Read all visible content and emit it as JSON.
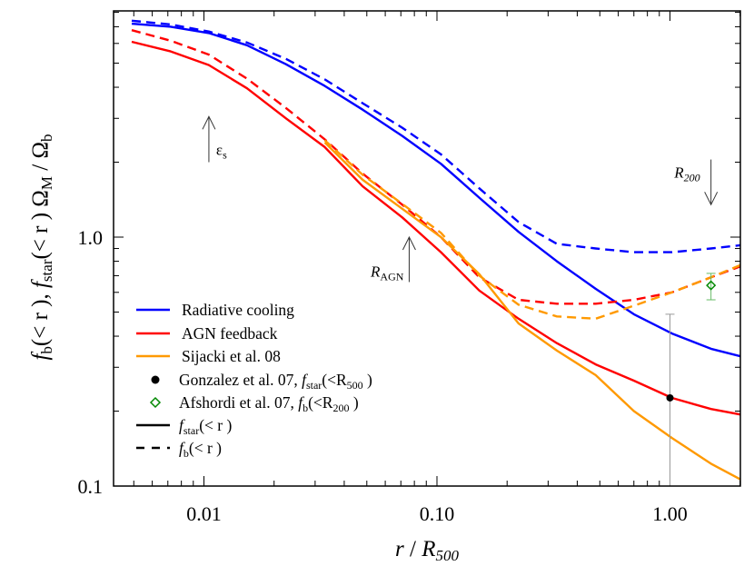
{
  "chart_data": {
    "type": "line",
    "x_scale": "log",
    "y_scale": "log",
    "xlim": [
      0.0041,
      2.0
    ],
    "ylim": [
      0.1,
      8.1
    ],
    "grid": false,
    "legend_placement": "bottom-left",
    "xlabel_parts": [
      {
        "t": "r",
        "s": "i"
      },
      {
        "t": " / ",
        "s": "n"
      },
      {
        "t": "R",
        "s": "i"
      },
      {
        "t": "500",
        "s": "isub"
      }
    ],
    "ylabel_parts": [
      {
        "t": "f",
        "s": "i"
      },
      {
        "t": "b",
        "s": "sub"
      },
      {
        "t": "(< r ), ",
        "s": "n"
      },
      {
        "t": "f",
        "s": "i"
      },
      {
        "t": "star",
        "s": "sub"
      },
      {
        "t": "(< r ) Ω",
        "s": "n"
      },
      {
        "t": "M",
        "s": "sub"
      },
      {
        "t": " / Ω",
        "s": "n"
      },
      {
        "t": "b",
        "s": "sub"
      }
    ],
    "x_ticks": [
      {
        "value": 0.01,
        "label": "0.01"
      },
      {
        "value": 0.1,
        "label": "0.10"
      },
      {
        "value": 1.0,
        "label": "1.00"
      }
    ],
    "y_ticks": [
      {
        "value": 0.1,
        "label": "0.1"
      },
      {
        "value": 1.0,
        "label": "1.0"
      }
    ],
    "x": [
      0.0049,
      0.0072,
      0.0105,
      0.0153,
      0.0225,
      0.033,
      0.048,
      0.071,
      0.104,
      0.152,
      0.224,
      0.327,
      0.48,
      0.7,
      1.02,
      1.5,
      2.06
    ],
    "series": [
      {
        "name": "Radiative cooling",
        "quantity": "f_star",
        "color": "#0000ff",
        "dash": false,
        "values": [
          7.2,
          7.0,
          6.6,
          5.9,
          4.95,
          4.05,
          3.25,
          2.55,
          1.97,
          1.44,
          1.05,
          0.8,
          0.62,
          0.49,
          0.41,
          0.356,
          0.33
        ]
      },
      {
        "name": "Radiative cooling",
        "quantity": "f_b",
        "color": "#0000ff",
        "dash": true,
        "values": [
          7.4,
          7.15,
          6.7,
          6.05,
          5.2,
          4.3,
          3.45,
          2.75,
          2.15,
          1.57,
          1.15,
          0.94,
          0.9,
          0.87,
          0.87,
          0.9,
          0.93
        ]
      },
      {
        "name": "AGN feedback",
        "quantity": "f_star",
        "color": "#ff0000",
        "dash": false,
        "values": [
          6.09,
          5.57,
          4.91,
          3.96,
          3.0,
          2.3,
          1.6,
          1.2,
          0.87,
          0.61,
          0.47,
          0.375,
          0.308,
          0.265,
          0.226,
          0.204,
          0.193
        ]
      },
      {
        "name": "AGN feedback",
        "quantity": "f_b",
        "color": "#ff0000",
        "dash": true,
        "values": [
          6.78,
          6.15,
          5.41,
          4.33,
          3.3,
          2.47,
          1.8,
          1.35,
          1.0,
          0.69,
          0.56,
          0.54,
          0.54,
          0.56,
          0.6,
          0.69,
          0.77
        ]
      },
      {
        "name": "Sijacki et al. 08",
        "quantity": "f_star",
        "color": "#ff9900",
        "dash": false,
        "values": [
          null,
          null,
          null,
          null,
          null,
          2.4,
          1.7,
          1.3,
          1.0,
          0.71,
          0.45,
          0.35,
          0.279,
          0.2,
          0.156,
          0.123,
          0.105
        ]
      },
      {
        "name": "Sijacki et al. 08",
        "quantity": "f_b",
        "color": "#ff9900",
        "dash": true,
        "values": [
          null,
          null,
          null,
          null,
          null,
          2.45,
          1.78,
          1.36,
          1.04,
          0.7,
          0.535,
          0.48,
          0.47,
          0.53,
          0.6,
          0.69,
          0.78
        ]
      }
    ],
    "observations": [
      {
        "name": "Gonzalez et al. 07",
        "marker": "filled-circle",
        "color": "#000000",
        "errorbar_color": "#999999",
        "x": 1.0,
        "y": 0.226,
        "y_err_low": 0.09,
        "y_err_high": 0.49
      },
      {
        "name": "Afshordi et al. 07",
        "marker": "open-diamond",
        "color": "#008800",
        "errorbar_color": "#66bb66",
        "x": 1.5,
        "y": 0.64,
        "y_err_low": 0.56,
        "y_err_high": 0.715
      }
    ],
    "annotations": [
      {
        "id": "eps",
        "parts": [
          {
            "t": "ε",
            "s": "n"
          },
          {
            "t": "s",
            "s": "sub"
          }
        ],
        "arrow_x": 0.0105,
        "arrow_from": 2.0,
        "arrow_to": 3.05,
        "direction": "up"
      },
      {
        "id": "ragn",
        "parts": [
          {
            "t": "R",
            "s": "i"
          },
          {
            "t": "AGN",
            "s": "sub"
          }
        ],
        "arrow_x": 0.076,
        "arrow_from": 0.66,
        "arrow_to": 1.0,
        "direction": "up"
      },
      {
        "id": "r200",
        "parts": [
          {
            "t": "R",
            "s": "i"
          },
          {
            "t": "200",
            "s": "isub"
          }
        ],
        "arrow_x": 1.5,
        "arrow_from": 2.05,
        "arrow_to": 1.35,
        "direction": "down"
      }
    ],
    "legend": [
      {
        "kind": "line",
        "color": "#0000ff",
        "dash": false,
        "parts": [
          {
            "t": "Radiative cooling",
            "s": "n"
          }
        ]
      },
      {
        "kind": "line",
        "color": "#ff0000",
        "dash": false,
        "parts": [
          {
            "t": "AGN feedback",
            "s": "n"
          }
        ]
      },
      {
        "kind": "line",
        "color": "#ff9900",
        "dash": false,
        "parts": [
          {
            "t": "Sijacki et al. 08",
            "s": "n"
          }
        ]
      },
      {
        "kind": "dot",
        "color": "#000000",
        "parts": [
          {
            "t": "Gonzalez et al. 07, ",
            "s": "n"
          },
          {
            "t": "f",
            "s": "i"
          },
          {
            "t": "star",
            "s": "sub"
          },
          {
            "t": "(<R",
            "s": "n"
          },
          {
            "t": "500",
            "s": "sub"
          },
          {
            "t": " )",
            "s": "n"
          }
        ]
      },
      {
        "kind": "diamond",
        "color": "#008800",
        "parts": [
          {
            "t": "Afshordi et al. 07, ",
            "s": "n"
          },
          {
            "t": "f",
            "s": "i"
          },
          {
            "t": "b",
            "s": "sub"
          },
          {
            "t": "(<R",
            "s": "n"
          },
          {
            "t": "200",
            "s": "sub"
          },
          {
            "t": " )",
            "s": "n"
          }
        ]
      },
      {
        "kind": "line",
        "color": "#000000",
        "dash": false,
        "parts": [
          {
            "t": "f",
            "s": "i"
          },
          {
            "t": "star",
            "s": "sub"
          },
          {
            "t": "(< r )",
            "s": "n"
          }
        ]
      },
      {
        "kind": "line",
        "color": "#000000",
        "dash": true,
        "parts": [
          {
            "t": "f",
            "s": "i"
          },
          {
            "t": "b",
            "s": "sub"
          },
          {
            "t": "(< r )",
            "s": "n"
          }
        ]
      }
    ]
  }
}
